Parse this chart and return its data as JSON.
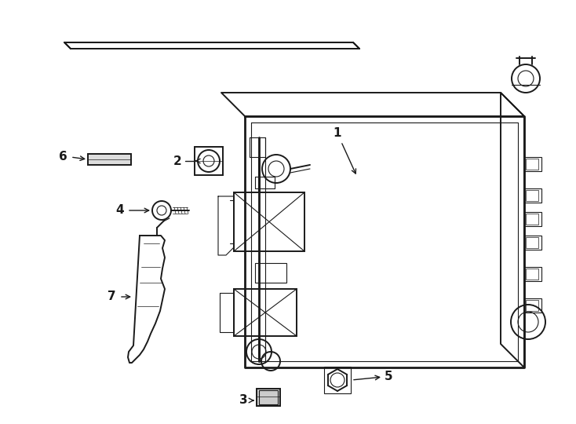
{
  "bg_color": "#ffffff",
  "line_color": "#1a1a1a",
  "lw_heavy": 2.0,
  "lw_med": 1.4,
  "lw_thin": 0.8,
  "lw_vt": 0.5,
  "fig_width": 7.34,
  "fig_height": 5.4,
  "dpi": 100,
  "font_size": 11
}
